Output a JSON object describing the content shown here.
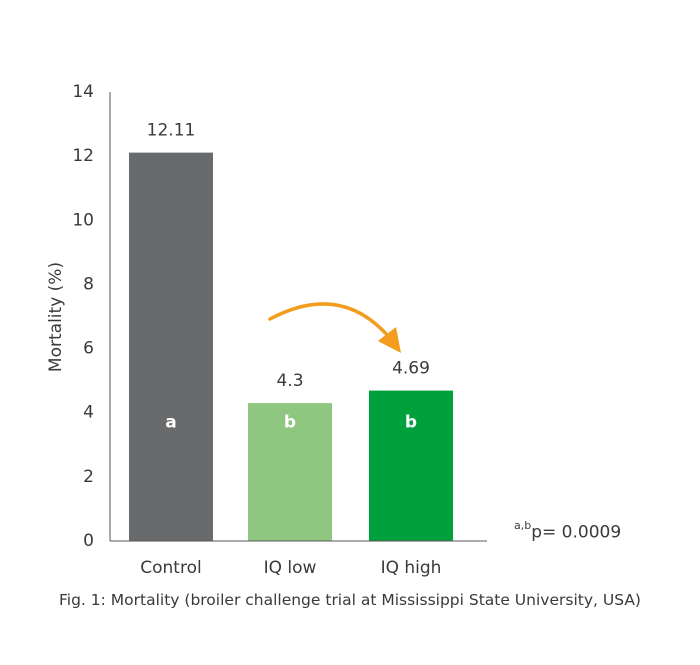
{
  "chart_data": {
    "type": "bar",
    "categories": [
      "Control",
      "IQ low",
      "IQ high"
    ],
    "values": [
      12.11,
      4.3,
      4.69
    ],
    "value_labels": [
      "12.11",
      "4.3",
      "4.69"
    ],
    "significance_letters": [
      "a",
      "b",
      "b"
    ],
    "bar_colors": [
      "#686a6c",
      "#8fc680",
      "#00a03c"
    ],
    "ylabel": "Mortality (%)",
    "xlabel": "",
    "ylim": [
      0,
      14
    ],
    "yticks": [
      0,
      2,
      4,
      6,
      8,
      10,
      12,
      14
    ],
    "grid": false,
    "annotations": {
      "pvalue_superscript": "a,b",
      "pvalue_text": "p= 0.0009",
      "arrow": {
        "from": "IQ low",
        "to": "IQ high",
        "color": "#f39c1e"
      }
    }
  },
  "caption": "Fig. 1: Mortality (broiler challenge trial at Mississippi State University, USA)"
}
